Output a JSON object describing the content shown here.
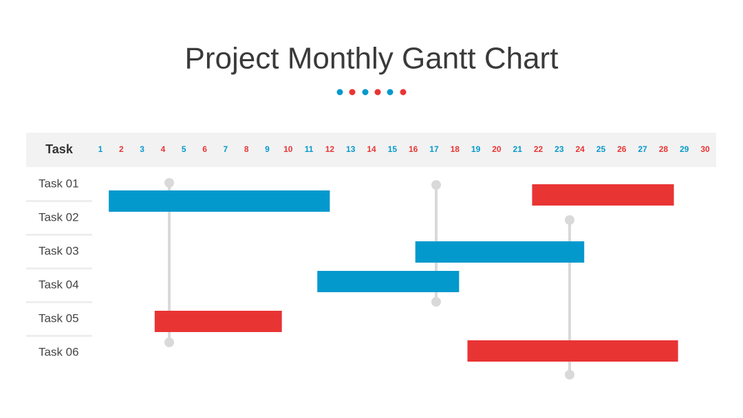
{
  "chart_data": {
    "type": "gantt",
    "title": "Project Monthly Gantt Chart",
    "header": "Task",
    "xticks": [
      1,
      2,
      3,
      4,
      5,
      6,
      7,
      8,
      9,
      10,
      11,
      12,
      13,
      14,
      15,
      16,
      17,
      18,
      19,
      20,
      21,
      22,
      23,
      24,
      25,
      26,
      27,
      28,
      29,
      30
    ],
    "xlim": [
      1,
      30
    ],
    "tick_colors": [
      "#0399cd",
      "#e93434"
    ],
    "tasks": [
      {
        "name": "Task 01",
        "start": 21.7,
        "end": 28.5,
        "color": "#e93434"
      },
      {
        "name": "Task 02",
        "start": 1.4,
        "end": 12,
        "color": "#0399cd"
      },
      {
        "name": "Task 03",
        "start": 16.1,
        "end": 24.2,
        "color": "#0399cd"
      },
      {
        "name": "Task 04",
        "start": 11.4,
        "end": 18.2,
        "color": "#0399cd"
      },
      {
        "name": "Task 05",
        "start": 3.6,
        "end": 9.7,
        "color": "#e93434"
      },
      {
        "name": "Task 06",
        "start": 18.6,
        "end": 28.7,
        "color": "#e93434"
      }
    ],
    "milestones": [
      4.3,
      17.1,
      23.5
    ]
  }
}
